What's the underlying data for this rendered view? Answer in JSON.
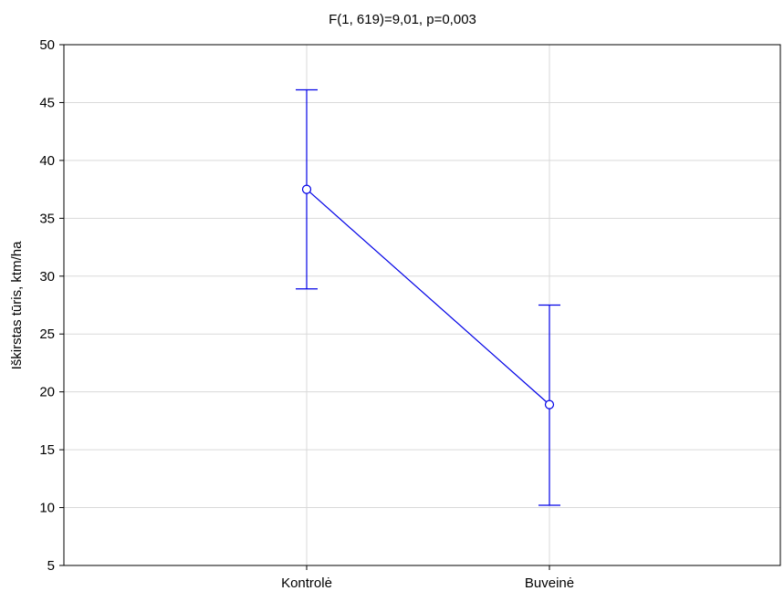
{
  "chart_data": {
    "type": "line",
    "title": "F(1, 619)=9,01, p=0,003",
    "xlabel": "",
    "ylabel": "Iškirstas tūris, ktm/ha",
    "categories": [
      "Kontrolė",
      "Buveinė"
    ],
    "values": [
      37.5,
      18.9
    ],
    "error_low": [
      28.9,
      10.2
    ],
    "error_high": [
      46.1,
      27.5
    ],
    "ylim": [
      5,
      50
    ],
    "yticks": [
      "5",
      "10",
      "15",
      "20",
      "25",
      "30",
      "35",
      "40",
      "45",
      "50"
    ],
    "grid": true,
    "series_color": "#0000e6",
    "grid_color": "#d9d9d9"
  }
}
